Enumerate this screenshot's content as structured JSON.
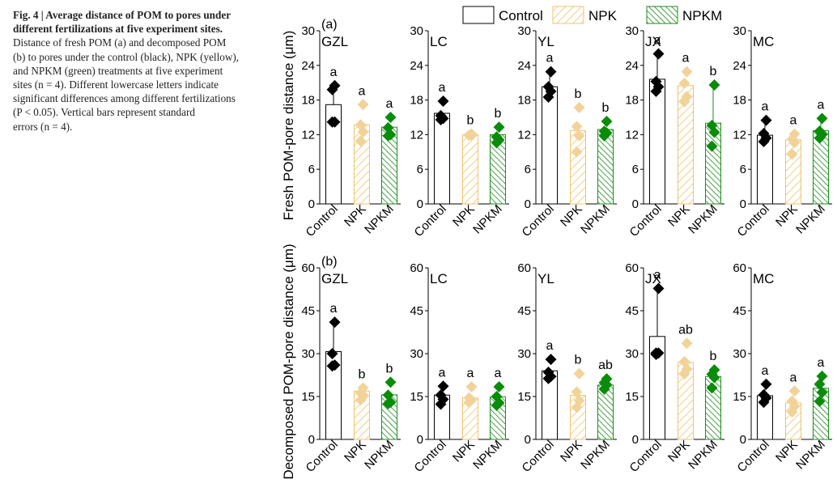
{
  "caption": {
    "title_lines": [
      "Fig. 4 | Average distance of POM to pores under",
      "different fertilizations at five experiment sites."
    ],
    "body_lines": [
      "Distance of fresh POM (a) and decomposed POM",
      "(b) to pores under the control (black), NPK (yellow),",
      "and NPKM (green) treatments at five experiment",
      "sites (n = 4). Different lowercase letters indicate",
      "significant differences among different fertilizations",
      "(P < 0.05). Vertical bars represent standard",
      "errors (n = 4)."
    ]
  },
  "colors": {
    "Control": "#000000",
    "NPK": "#f0c36d",
    "NPK_marker": "#f1d399",
    "NPKM": "#1e8a1e",
    "NPKM_marker": "#0a8c0a"
  },
  "chart_data": {
    "type": "bar",
    "legend": [
      "Control",
      "NPK",
      "NPKM"
    ],
    "legend_position": "top-center",
    "categories": [
      "Control",
      "NPK",
      "NPKM"
    ],
    "panels": [
      {
        "panel_label": "(a)",
        "ylabel": "Fresh POM-pore distance (μm)",
        "ylim": [
          0,
          30
        ],
        "yticks": [
          0,
          6,
          12,
          18,
          24,
          30
        ],
        "sites": [
          {
            "site": "GZL",
            "means": [
              17.2,
              13.7,
              13.3
            ],
            "errors": [
              2.9,
              null,
              null
            ],
            "points": [
              [
                20.5,
                19.8,
                14.2,
                14.2
              ],
              [
                17.2,
                13.7,
                12.5,
                10.9
              ],
              [
                15.0,
                13.2,
                12.0,
                11.8
              ]
            ],
            "letters": [
              "a",
              "a",
              "a"
            ]
          },
          {
            "site": "LC",
            "means": [
              15.7,
              12.0,
              12.0
            ],
            "errors": [
              null,
              null,
              null
            ],
            "points": [
              [
                17.8,
                15.3,
                14.8,
                14.6
              ],
              [
                12.1,
                11.9,
                11.9,
                11.9
              ],
              [
                13.3,
                11.6,
                11.1,
                10.6
              ]
            ],
            "letters": [
              "a",
              "b",
              "b"
            ]
          },
          {
            "site": "YL",
            "means": [
              20.3,
              12.7,
              12.9
            ],
            "errors": [
              2.5,
              null,
              null
            ],
            "points": [
              [
                22.9,
                20.3,
                19.5,
                18.5
              ],
              [
                16.7,
                13.4,
                11.8,
                9.0
              ],
              [
                14.3,
                12.6,
                12.3,
                11.8
              ]
            ],
            "letters": [
              "a",
              "b",
              "b"
            ]
          },
          {
            "site": "JX",
            "means": [
              21.6,
              20.5,
              14.0
            ],
            "errors": [
              4.4,
              null,
              6.6
            ],
            "points": [
              [
                26.0,
                21.2,
                20.3,
                19.5
              ],
              [
                22.9,
                20.9,
                18.6,
                17.7
              ],
              [
                20.6,
                13.6,
                12.4,
                10.0
              ]
            ],
            "letters": [
              "a",
              "a",
              "b"
            ]
          },
          {
            "site": "MC",
            "means": [
              11.9,
              11.1,
              12.7
            ],
            "errors": [
              2.5,
              null,
              2.0
            ],
            "points": [
              [
                14.5,
                12.2,
                11.4,
                10.8
              ],
              [
                12.1,
                11.2,
                10.6,
                8.6
              ],
              [
                14.8,
                12.6,
                12.0,
                11.4
              ]
            ],
            "letters": [
              "a",
              "a",
              "a"
            ]
          }
        ]
      },
      {
        "panel_label": "(b)",
        "ylabel": "Decomposed POM-pore distance (μm)",
        "ylim": [
          0,
          60
        ],
        "yticks": [
          0,
          15,
          30,
          45,
          60
        ],
        "sites": [
          {
            "site": "GZL",
            "means": [
              30.7,
              16.9,
              15.6
            ],
            "errors": [
              10.2,
              null,
              null
            ],
            "points": [
              [
                41.0,
                30.0,
                26.0,
                25.7
              ],
              [
                18.0,
                16.2,
                15.5,
                13.8
              ],
              [
                20.0,
                15.5,
                13.0,
                12.5
              ]
            ],
            "letters": [
              "a",
              "b",
              "b"
            ]
          },
          {
            "site": "LC",
            "means": [
              15.5,
              14.5,
              14.9
            ],
            "errors": [
              null,
              null,
              null
            ],
            "points": [
              [
                18.6,
                15.5,
                14.0,
                12.3
              ],
              [
                18.4,
                14.5,
                13.8,
                13.0
              ],
              [
                18.4,
                15.0,
                12.8,
                11.9
              ]
            ],
            "letters": [
              "a",
              "a",
              "a"
            ]
          },
          {
            "site": "YL",
            "means": [
              24.0,
              15.4,
              19.0
            ],
            "errors": [
              null,
              null,
              null
            ],
            "points": [
              [
                28.0,
                23.5,
                22.0,
                21.3
              ],
              [
                23.0,
                16.6,
                13.5,
                11.2
              ],
              [
                21.2,
                19.8,
                19.1,
                17.6
              ]
            ],
            "letters": [
              "a",
              "b",
              "ab"
            ]
          },
          {
            "site": "JX",
            "means": [
              36.0,
              26.9,
              22.0
            ],
            "errors": [
              16.8,
              null,
              null
            ],
            "points": [
              [
                52.8,
                30.2,
                30.2,
                29.7
              ],
              [
                33.6,
                27.2,
                24.6,
                22.9
              ],
              [
                24.3,
                22.8,
                21.6,
                18.0
              ]
            ],
            "letters": [
              "a",
              "ab",
              "b"
            ]
          },
          {
            "site": "MC",
            "means": [
              15.3,
              12.8,
              17.9
            ],
            "errors": [
              4.0,
              null,
              null
            ],
            "points": [
              [
                19.3,
                15.6,
                14.5,
                13.0
              ],
              [
                16.9,
                13.4,
                11.6,
                9.6
              ],
              [
                22.1,
                19.3,
                16.4,
                13.3
              ]
            ],
            "letters": [
              "a",
              "a",
              "a"
            ]
          }
        ]
      }
    ]
  }
}
